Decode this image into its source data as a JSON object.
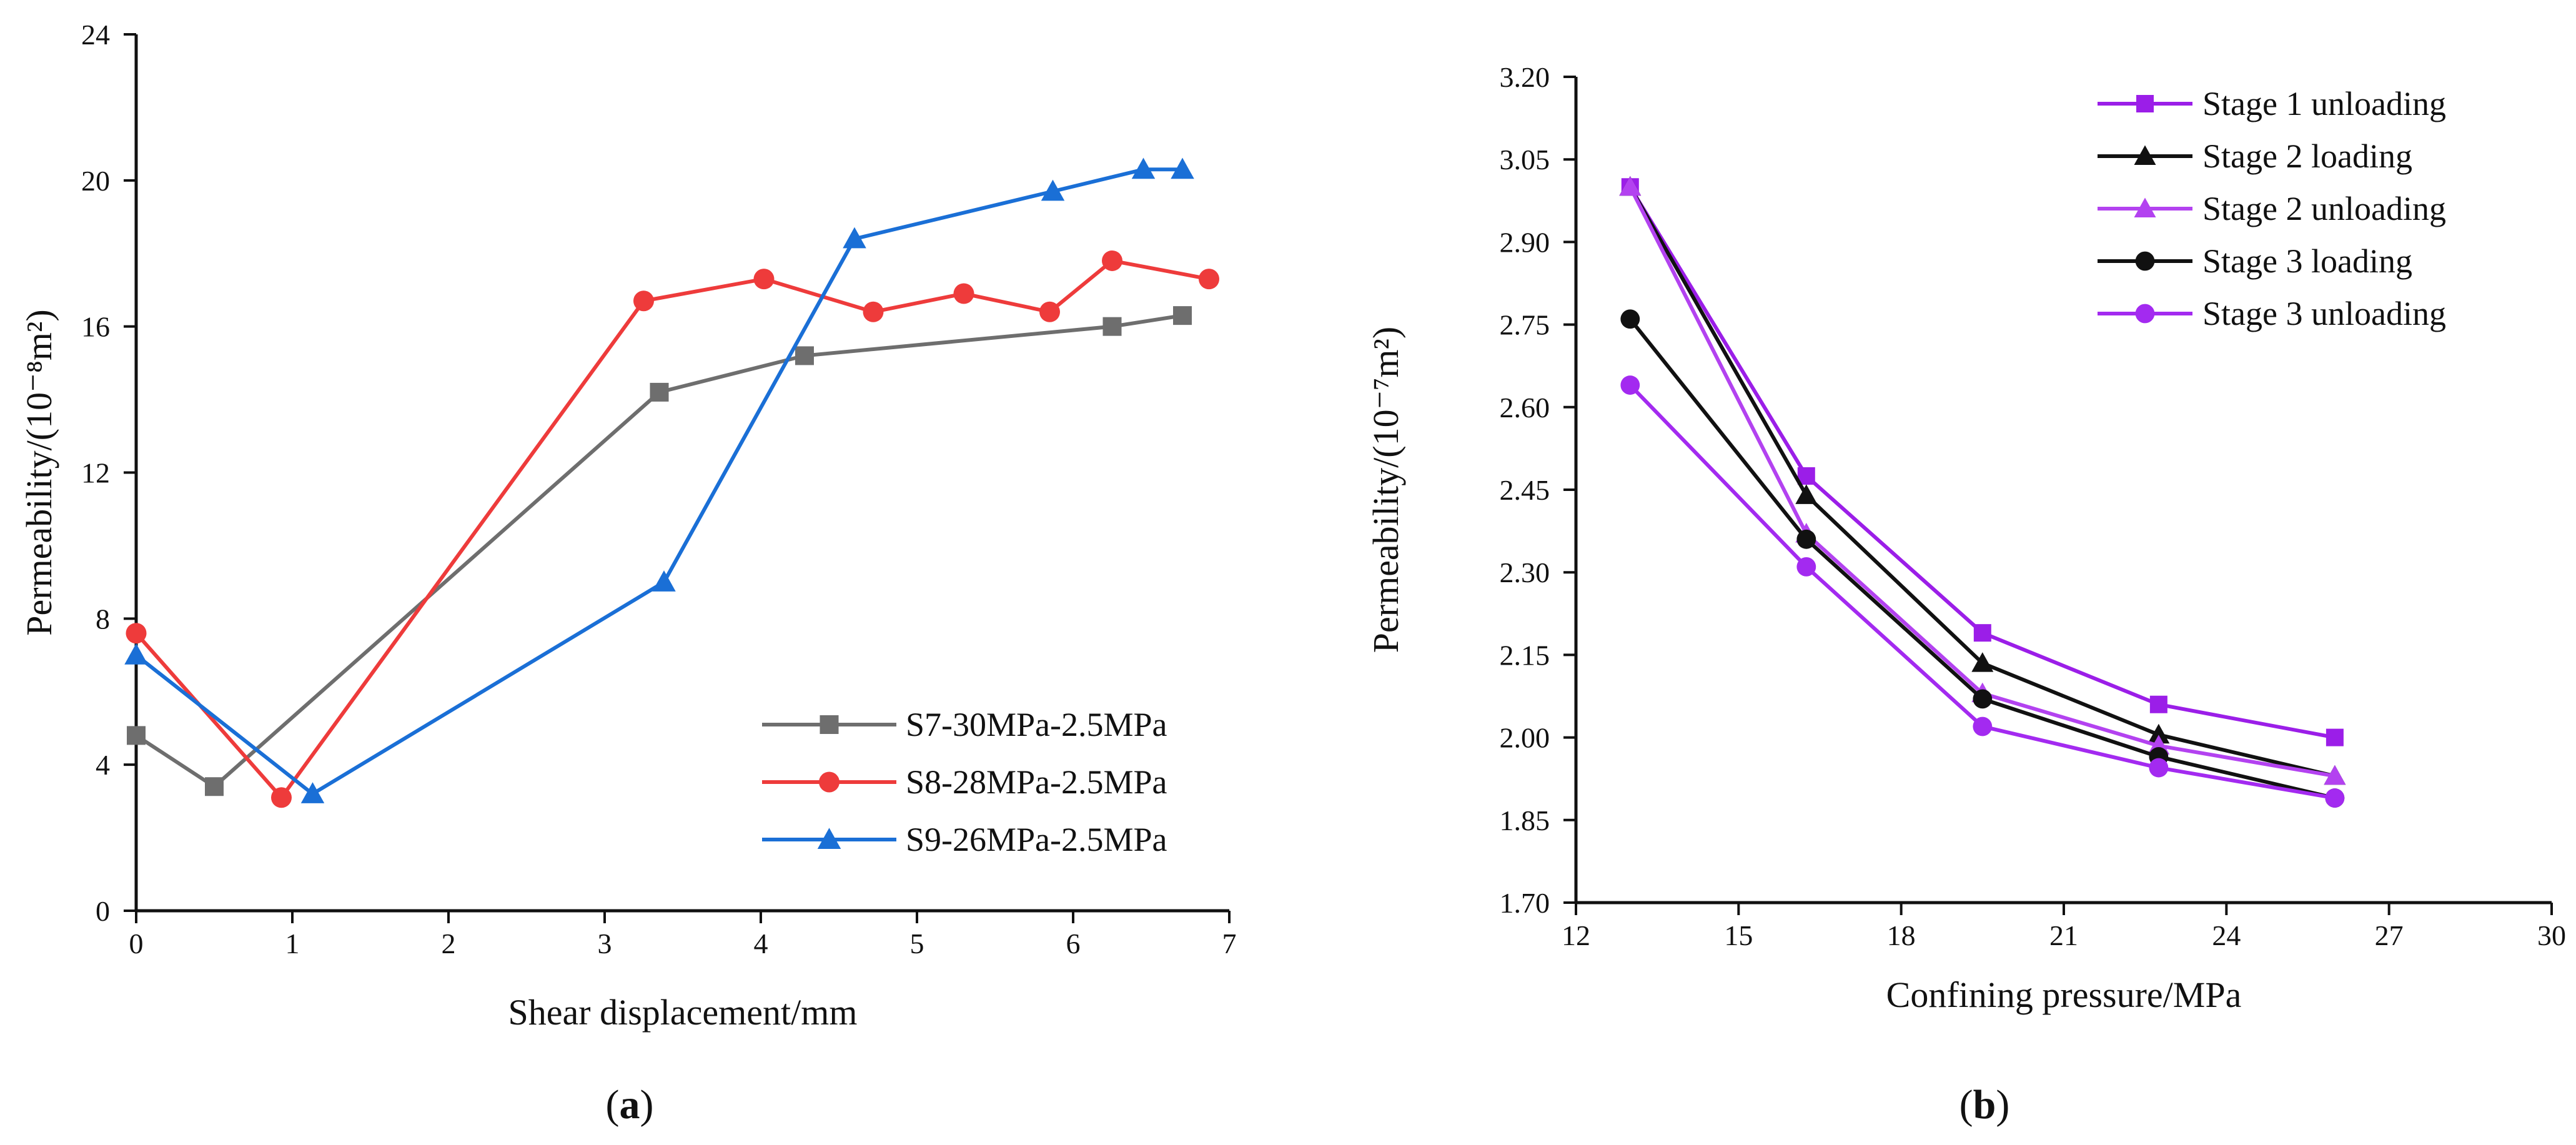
{
  "chart_data": [
    {
      "type": "line",
      "panel_label": "(a)",
      "panel_letter": "a",
      "xlabel": "Shear displacement/mm",
      "ylabel": "Permeability/(10⁻⁸m²)",
      "xlim": [
        0,
        7
      ],
      "ylim": [
        0,
        24
      ],
      "xticks": [
        0,
        1,
        2,
        3,
        4,
        5,
        6,
        7
      ],
      "yticks": [
        0,
        4,
        8,
        12,
        16,
        20,
        24
      ],
      "grid": false,
      "legend_position": "bottom-right",
      "series": [
        {
          "name": "S7-30MPa-2.5MPa",
          "color": "#6e6e6e",
          "marker": "square",
          "x": [
            0,
            0.5,
            3.35,
            4.28,
            6.25,
            6.7
          ],
          "y": [
            4.8,
            3.4,
            14.2,
            15.2,
            16.0,
            16.3
          ]
        },
        {
          "name": "S8-28MPa-2.5MPa",
          "color": "#ee3b3b",
          "marker": "circle",
          "x": [
            0,
            0.93,
            3.25,
            4.02,
            4.72,
            5.3,
            5.85,
            6.25,
            6.87
          ],
          "y": [
            7.6,
            3.1,
            16.7,
            17.3,
            16.4,
            16.9,
            16.4,
            17.8,
            17.3
          ]
        },
        {
          "name": "S9-26MPa-2.5MPa",
          "color": "#1a6fd6",
          "marker": "triangle",
          "x": [
            0,
            1.13,
            3.38,
            4.6,
            5.87,
            6.45,
            6.7
          ],
          "y": [
            7.0,
            3.2,
            9.0,
            18.4,
            19.7,
            20.3,
            20.3
          ]
        }
      ]
    },
    {
      "type": "line",
      "panel_label": "(b)",
      "panel_letter": "b",
      "xlabel": "Confining pressure/MPa",
      "ylabel": "Permeability/(10⁻⁷m²)",
      "xlim": [
        12,
        30
      ],
      "ylim": [
        1.7,
        3.2
      ],
      "xticks": [
        12,
        15,
        18,
        21,
        24,
        27,
        30
      ],
      "yticks": [
        "1.70",
        "1.85",
        "2.00",
        "2.15",
        "2.30",
        "2.45",
        "2.60",
        "2.75",
        "2.90",
        "3.05",
        "3.20"
      ],
      "grid": false,
      "legend_position": "top-right",
      "series": [
        {
          "name": "Stage 1 unloading",
          "color": "#9b1ee8",
          "marker": "square",
          "x": [
            13,
            16.25,
            19.5,
            22.75,
            26
          ],
          "y": [
            3.0,
            2.475,
            2.19,
            2.06,
            2.0
          ]
        },
        {
          "name": "Stage 2 loading",
          "color": "#111111",
          "marker": "triangle",
          "x": [
            13,
            16.25,
            19.5,
            22.75,
            26
          ],
          "y": [
            3.0,
            2.44,
            2.135,
            2.005,
            1.93
          ]
        },
        {
          "name": "Stage 2 unloading",
          "color": "#b342f0",
          "marker": "triangle",
          "x": [
            13,
            16.25,
            19.5,
            22.75,
            26
          ],
          "y": [
            3.0,
            2.37,
            2.08,
            1.985,
            1.93
          ]
        },
        {
          "name": "Stage 3 loading",
          "color": "#111111",
          "marker": "circle",
          "x": [
            13,
            16.25,
            19.5,
            22.75,
            26
          ],
          "y": [
            2.76,
            2.36,
            2.07,
            1.965,
            1.89
          ]
        },
        {
          "name": "Stage 3 unloading",
          "color": "#a32af0",
          "marker": "circle",
          "x": [
            13,
            16.25,
            19.5,
            22.75,
            26
          ],
          "y": [
            2.64,
            2.31,
            2.02,
            1.945,
            1.89
          ]
        }
      ]
    }
  ]
}
